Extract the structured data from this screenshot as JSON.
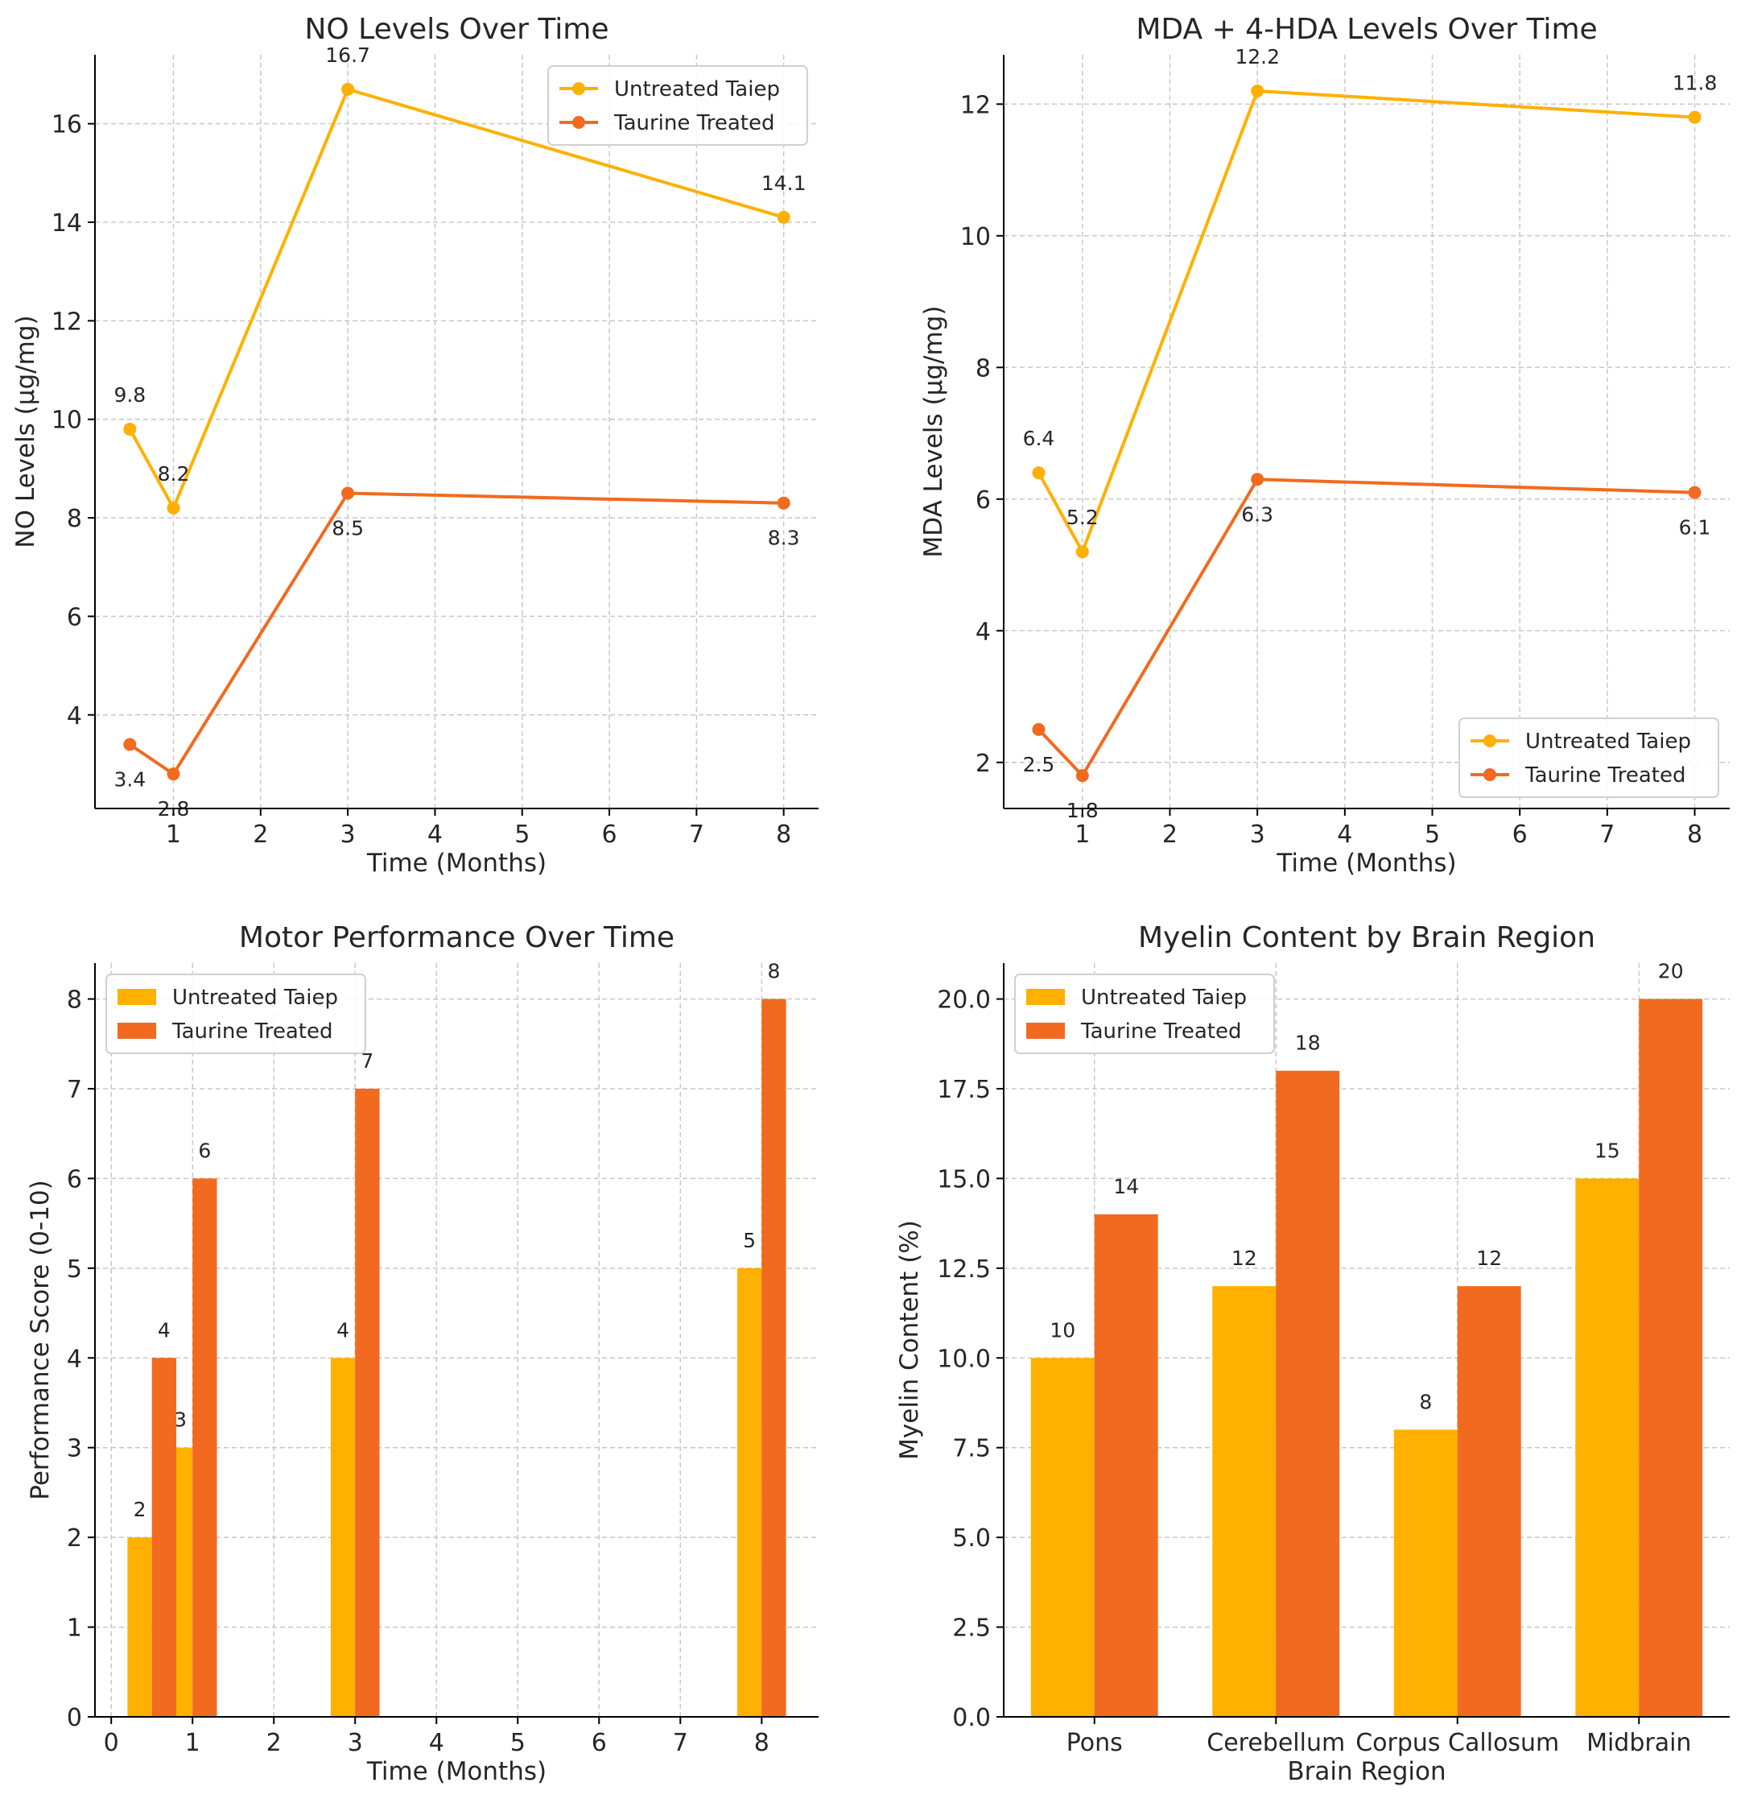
{
  "colors": {
    "untreated": "#FFB000",
    "treated": "#F26A1F",
    "grid": "#c8c8c8",
    "axis": "#000000"
  },
  "chart_data": [
    {
      "type": "line",
      "title": "NO Levels Over Time",
      "xlabel": "Time (Months)",
      "ylabel": "NO Levels (μg/mg)",
      "xlim": [
        0.1,
        8.4
      ],
      "ylim": [
        2.1,
        17.4
      ],
      "xticks": [
        1,
        2,
        3,
        4,
        5,
        6,
        7,
        8
      ],
      "yticks": [
        4,
        6,
        8,
        10,
        12,
        14,
        16
      ],
      "legend": "top-right",
      "x": [
        0.5,
        1,
        3,
        8
      ],
      "series": [
        {
          "name": "Untreated Taiep",
          "values": [
            9.8,
            8.2,
            16.7,
            14.1
          ],
          "labels": [
            "9.8",
            "8.2",
            "16.7",
            "14.1"
          ]
        },
        {
          "name": "Taurine Treated",
          "values": [
            3.4,
            2.8,
            8.5,
            8.3
          ],
          "labels": [
            "3.4",
            "2.8",
            "8.5",
            "8.3"
          ]
        }
      ]
    },
    {
      "type": "line",
      "title": "MDA + 4-HDA Levels Over Time",
      "xlabel": "Time (Months)",
      "ylabel": "MDA Levels (μg/mg)",
      "xlim": [
        0.1,
        8.4
      ],
      "ylim": [
        1.3,
        12.75
      ],
      "xticks": [
        1,
        2,
        3,
        4,
        5,
        6,
        7,
        8
      ],
      "yticks": [
        2,
        4,
        6,
        8,
        10,
        12
      ],
      "legend": "bottom-right",
      "x": [
        0.5,
        1,
        3,
        8
      ],
      "series": [
        {
          "name": "Untreated Taiep",
          "values": [
            6.4,
            5.2,
            12.2,
            11.8
          ],
          "labels": [
            "6.4",
            "5.2",
            "12.2",
            "11.8"
          ]
        },
        {
          "name": "Taurine Treated",
          "values": [
            2.5,
            1.8,
            6.3,
            6.1
          ],
          "labels": [
            "2.5",
            "1.8",
            "6.3",
            "6.1"
          ]
        }
      ]
    },
    {
      "type": "bar",
      "title": "Motor Performance Over Time",
      "xlabel": "Time (Months)",
      "ylabel": "Performance Score (0-10)",
      "xlim": [
        -0.2,
        8.7
      ],
      "ylim": [
        0,
        8.4
      ],
      "xticks": [
        0,
        1,
        2,
        3,
        4,
        5,
        6,
        7,
        8
      ],
      "yticks": [
        0,
        1,
        2,
        3,
        4,
        5,
        6,
        7,
        8
      ],
      "legend": "top-left",
      "x": [
        0.5,
        1,
        3,
        8
      ],
      "bar_width": 0.3,
      "series": [
        {
          "name": "Untreated Taiep",
          "values": [
            2,
            3,
            4,
            5
          ],
          "labels": [
            "2",
            "3",
            "4",
            "5"
          ]
        },
        {
          "name": "Taurine Treated",
          "values": [
            4,
            6,
            7,
            8
          ],
          "labels": [
            "4",
            "6",
            "7",
            "8"
          ]
        }
      ]
    },
    {
      "type": "bar",
      "title": "Myelin Content by Brain Region",
      "xlabel": "Brain Region",
      "ylabel": "Myelin Content (%)",
      "categories": [
        "Pons",
        "Cerebellum",
        "Corpus Callosum",
        "Midbrain"
      ],
      "xlim": [
        -0.5,
        3.5
      ],
      "ylim": [
        0,
        21
      ],
      "yticks": [
        0.0,
        2.5,
        5.0,
        7.5,
        10.0,
        12.5,
        15.0,
        17.5,
        20.0
      ],
      "ytick_labels": [
        "0.0",
        "2.5",
        "5.0",
        "7.5",
        "10.0",
        "12.5",
        "15.0",
        "17.5",
        "20.0"
      ],
      "legend": "top-left",
      "bar_width": 0.35,
      "series": [
        {
          "name": "Untreated Taiep",
          "values": [
            10,
            12,
            8,
            15
          ],
          "labels": [
            "10",
            "12",
            "8",
            "15"
          ]
        },
        {
          "name": "Taurine Treated",
          "values": [
            14,
            18,
            12,
            20
          ],
          "labels": [
            "14",
            "18",
            "12",
            "20"
          ]
        }
      ]
    }
  ]
}
